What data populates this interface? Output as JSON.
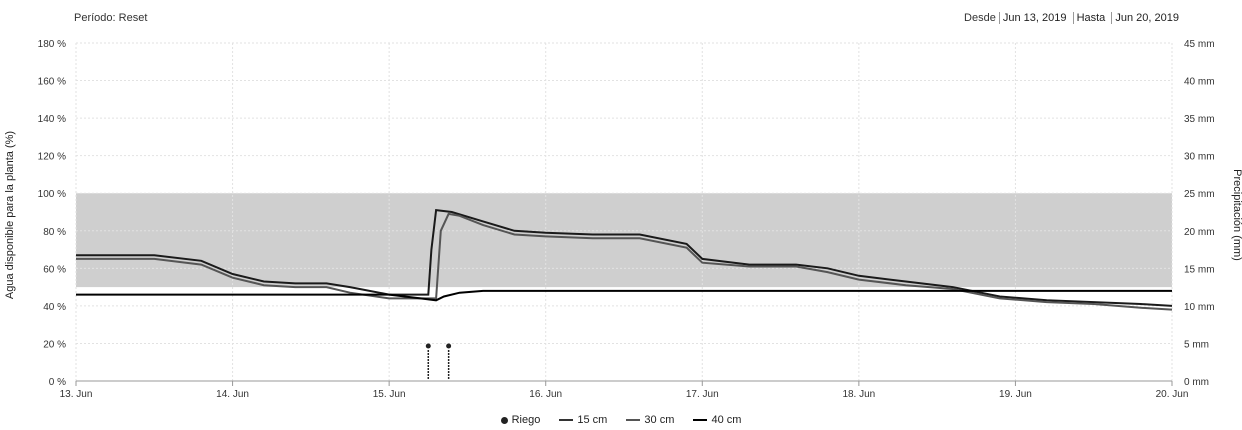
{
  "header": {
    "period_label": "Período",
    "reset_label": "Reset",
    "from_label": "Desde",
    "from_date": "Jun 13, 2019",
    "to_label": "Hasta",
    "to_date": "Jun 20, 2019"
  },
  "chart_data": {
    "type": "line",
    "ylabel": "Agua disponible para la planta (%)",
    "y2label": "Precipitación (mm)",
    "ylim": [
      0,
      180
    ],
    "y2lim": [
      0,
      45
    ],
    "y_ticks": [
      "0 %",
      "20 %",
      "40 %",
      "60 %",
      "80 %",
      "100 %",
      "120 %",
      "140 %",
      "160 %",
      "180 %"
    ],
    "y2_ticks": [
      "0 mm",
      "5 mm",
      "10 mm",
      "15 mm",
      "20 mm",
      "25 mm",
      "30 mm",
      "35 mm",
      "40 mm",
      "45 mm"
    ],
    "x_ticks": [
      "13. Jun",
      "14. Jun",
      "15. Jun",
      "16. Jun",
      "17. Jun",
      "18. Jun",
      "19. Jun",
      "20. Jun"
    ],
    "x_range_days": [
      13,
      20
    ],
    "target_band": [
      50,
      100
    ],
    "grid": true,
    "legend_position": "bottom",
    "series": [
      {
        "name": "15 cm",
        "color": "#1a1a1a",
        "x": [
          13,
          13.5,
          13.8,
          14.0,
          14.2,
          14.4,
          14.6,
          14.75,
          15.0,
          15.25,
          15.27,
          15.3,
          15.4,
          15.6,
          15.8,
          16.0,
          16.3,
          16.6,
          16.9,
          17.0,
          17.3,
          17.6,
          17.8,
          18.0,
          18.3,
          18.6,
          18.9,
          19.2,
          19.5,
          19.8,
          20.0
        ],
        "y": [
          67,
          67,
          64,
          57,
          53,
          52,
          52,
          50,
          46,
          46,
          70,
          91,
          90,
          85,
          80,
          79,
          78,
          78,
          73,
          65,
          62,
          62,
          60,
          56,
          53,
          50,
          45,
          43,
          42,
          41,
          40
        ]
      },
      {
        "name": "30 cm",
        "color": "#555555",
        "x": [
          13,
          13.5,
          13.8,
          14.0,
          14.2,
          14.4,
          14.6,
          14.75,
          15.0,
          15.3,
          15.33,
          15.38,
          15.45,
          15.6,
          15.8,
          16.0,
          16.3,
          16.6,
          16.9,
          17.0,
          17.3,
          17.6,
          17.8,
          18.0,
          18.3,
          18.6,
          18.9,
          19.2,
          19.5,
          19.8,
          20.0
        ],
        "y": [
          65,
          65,
          62,
          55,
          51,
          50,
          50,
          47,
          44,
          44,
          80,
          89,
          88,
          83,
          78,
          77,
          76,
          76,
          71,
          63,
          61,
          61,
          58,
          54,
          51,
          49,
          44,
          42,
          41,
          39,
          38
        ]
      },
      {
        "name": "40 cm",
        "color": "#000000",
        "x": [
          13,
          13.7,
          14.0,
          14.5,
          14.9,
          15.0,
          15.2,
          15.3,
          15.35,
          15.45,
          15.6,
          16.0,
          16.5,
          17.0,
          17.5,
          18.0,
          18.5,
          19.0,
          19.5,
          20.0
        ],
        "y": [
          46,
          46,
          46,
          46,
          46,
          46,
          44,
          43,
          45,
          47,
          48,
          48,
          48,
          48,
          48,
          48,
          48,
          48,
          48,
          48
        ]
      }
    ],
    "riego": {
      "name": "Riego",
      "x": [
        15.25,
        15.38
      ]
    }
  }
}
